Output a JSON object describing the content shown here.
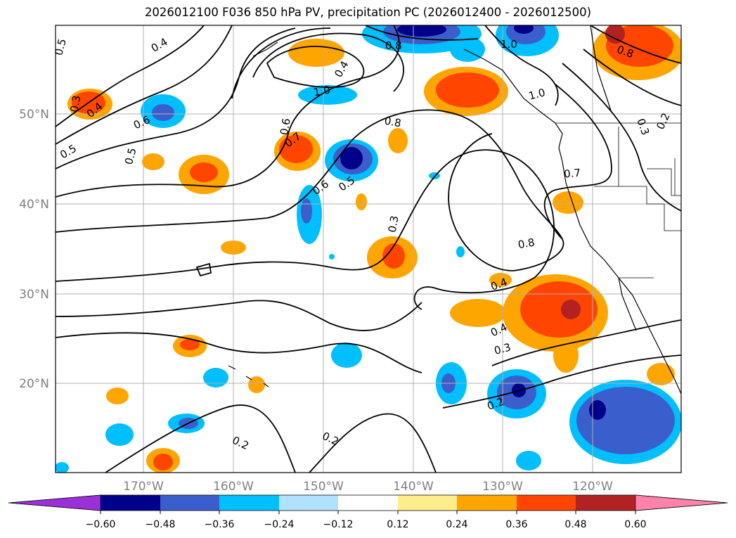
{
  "title": "2026012100 F036 850 hPa PV, precipitation PC (2026012400 - 2026012500)",
  "map": {
    "lat_ticks": [
      "50°N",
      "40°N",
      "30°N",
      "20°N"
    ],
    "lon_ticks": [
      "170°W",
      "160°W",
      "150°W",
      "140°W",
      "130°W",
      "120°W"
    ],
    "contour_labels": [
      "0.5",
      "0.4",
      "0.3",
      "0.4",
      "0.5",
      "0.6",
      "0.5",
      "0.6",
      "0.7",
      "0.6",
      "0.5",
      "0.4",
      "1.0",
      "0.8",
      "1.0",
      "1.0",
      "0.8",
      "0.8",
      "0.3",
      "0.2",
      "0.7",
      "0.3",
      "0.8",
      "0.4",
      "0.4",
      "0.3",
      "0.2",
      "0.2",
      "0.2"
    ]
  },
  "colorbar": {
    "ticks": [
      "−0.60",
      "−0.48",
      "−0.36",
      "−0.24",
      "−0.12",
      "0.12",
      "0.24",
      "0.36",
      "0.48",
      "0.60"
    ],
    "colors": [
      "#9b30d9",
      "#00008b",
      "#3a5fcd",
      "#00bfff",
      "#b0e2ff",
      "#ffffff",
      "#ffec8b",
      "#ffa500",
      "#ff4500",
      "#b22222",
      "#ff82ab"
    ]
  }
}
